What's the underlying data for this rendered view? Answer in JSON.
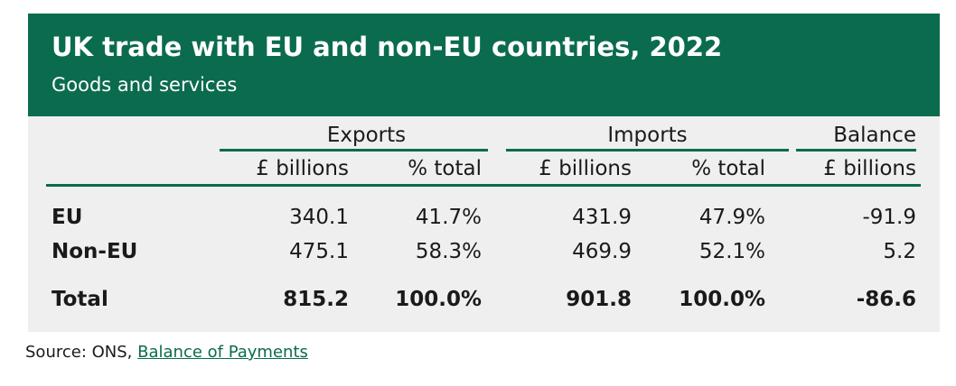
{
  "colors": {
    "header_bg": "#0b6b4f",
    "table_bg": "#efefef",
    "rule": "#0b6b4f"
  },
  "chart_data": {
    "type": "table",
    "title": "UK trade with EU and non-EU countries, 2022",
    "subtitle": "Goods and services",
    "group_headers": [
      "Exports",
      "Imports",
      "Balance"
    ],
    "column_headers": [
      "£ billions",
      "% total",
      "£ billions",
      "% total",
      "£ billions"
    ],
    "rows": [
      {
        "label": "EU",
        "values": [
          "340.1",
          "41.7%",
          "431.9",
          "47.9%",
          "-91.9"
        ]
      },
      {
        "label": "Non-EU",
        "values": [
          "475.1",
          "58.3%",
          "469.9",
          "52.1%",
          "5.2"
        ]
      }
    ],
    "total": {
      "label": "Total",
      "values": [
        "815.2",
        "100.0%",
        "901.8",
        "100.0%",
        "-86.6"
      ]
    }
  },
  "source": {
    "prefix": "Source: ONS, ",
    "link_text": "Balance of Payments"
  }
}
